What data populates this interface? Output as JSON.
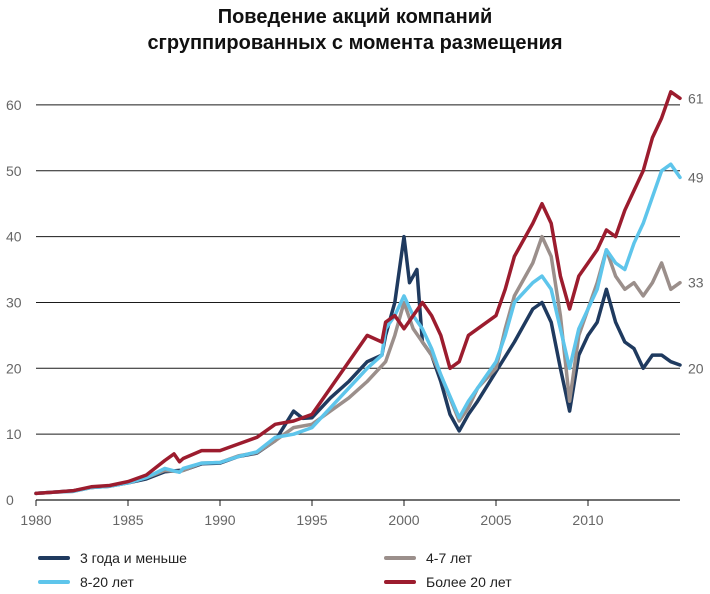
{
  "title_line1": "Поведение акций компаний",
  "title_line2": "сгруппированных с момента размещения",
  "chart_data": {
    "type": "line",
    "xlim": [
      1980,
      2015
    ],
    "ylim": [
      0,
      65
    ],
    "x_ticks": [
      "1980",
      "1985",
      "1990",
      "1995",
      "2000",
      "2005",
      "2010"
    ],
    "x_tick_values": [
      1980,
      1985,
      1990,
      1995,
      2000,
      2005,
      2010
    ],
    "y_ticks": [
      "0",
      "10",
      "20",
      "30",
      "40",
      "50",
      "60"
    ],
    "y_tick_values": [
      0,
      10,
      20,
      30,
      40,
      50,
      60
    ],
    "grid": "horizontal",
    "legend_position": "bottom",
    "series": [
      {
        "name": "3 года и меньше",
        "color": "#1f3a5f",
        "end_label": "20",
        "points": [
          [
            1980,
            1
          ],
          [
            1981,
            1.2
          ],
          [
            1982,
            1.4
          ],
          [
            1983,
            1.9
          ],
          [
            1984,
            2.1
          ],
          [
            1985,
            2.6
          ],
          [
            1986,
            3.2
          ],
          [
            1987,
            4.3
          ],
          [
            1987.8,
            4.5
          ],
          [
            1988,
            4.5
          ],
          [
            1989,
            5.5
          ],
          [
            1990,
            5.6
          ],
          [
            1991,
            6.6
          ],
          [
            1992,
            7.1
          ],
          [
            1993,
            9
          ],
          [
            1994,
            13.5
          ],
          [
            1994.5,
            12.4
          ],
          [
            1995,
            12.5
          ],
          [
            1996,
            15.5
          ],
          [
            1997,
            18
          ],
          [
            1998,
            21
          ],
          [
            1998.8,
            22
          ],
          [
            1999,
            25
          ],
          [
            1999.5,
            30
          ],
          [
            2000,
            40
          ],
          [
            2000.3,
            33
          ],
          [
            2000.7,
            35
          ],
          [
            2001,
            24
          ],
          [
            2001.5,
            22
          ],
          [
            2002,
            18
          ],
          [
            2002.5,
            13
          ],
          [
            2003,
            10.5
          ],
          [
            2003.5,
            13
          ],
          [
            2004,
            15
          ],
          [
            2005,
            19.5
          ],
          [
            2006,
            24
          ],
          [
            2007,
            29
          ],
          [
            2007.5,
            30
          ],
          [
            2008,
            27
          ],
          [
            2008.5,
            20
          ],
          [
            2009,
            13.5
          ],
          [
            2009.5,
            22
          ],
          [
            2010,
            25
          ],
          [
            2010.5,
            27
          ],
          [
            2011,
            32
          ],
          [
            2011.5,
            27
          ],
          [
            2012,
            24
          ],
          [
            2012.5,
            23
          ],
          [
            2013,
            20
          ],
          [
            2013.5,
            22
          ],
          [
            2014,
            22
          ],
          [
            2014.5,
            21
          ],
          [
            2015,
            20.5
          ]
        ]
      },
      {
        "name": "4-7 лет",
        "color": "#9b8f8b",
        "end_label": "33",
        "points": [
          [
            1980,
            1
          ],
          [
            1981,
            1.2
          ],
          [
            1982,
            1.3
          ],
          [
            1983,
            1.9
          ],
          [
            1984,
            2.1
          ],
          [
            1985,
            2.6
          ],
          [
            1986,
            3.4
          ],
          [
            1987,
            4.5
          ],
          [
            1987.8,
            4.3
          ],
          [
            1988,
            4.5
          ],
          [
            1989,
            5.6
          ],
          [
            1990,
            5.7
          ],
          [
            1991,
            6.7
          ],
          [
            1992,
            7.2
          ],
          [
            1993,
            9
          ],
          [
            1994,
            11
          ],
          [
            1995,
            11.5
          ],
          [
            1996,
            13.5
          ],
          [
            1997,
            15.5
          ],
          [
            1998,
            18
          ],
          [
            1999,
            21
          ],
          [
            1999.5,
            25
          ],
          [
            2000,
            30
          ],
          [
            2000.5,
            26
          ],
          [
            2001,
            24
          ],
          [
            2001.5,
            22
          ],
          [
            2002,
            19
          ],
          [
            2003,
            12
          ],
          [
            2003.5,
            14
          ],
          [
            2004,
            17
          ],
          [
            2005,
            20
          ],
          [
            2005.5,
            26
          ],
          [
            2006,
            31
          ],
          [
            2007,
            36
          ],
          [
            2007.5,
            40
          ],
          [
            2008,
            37
          ],
          [
            2008.5,
            28
          ],
          [
            2009,
            15
          ],
          [
            2009.5,
            25
          ],
          [
            2010,
            29
          ],
          [
            2010.5,
            33
          ],
          [
            2011,
            38
          ],
          [
            2011.5,
            34
          ],
          [
            2012,
            32
          ],
          [
            2012.5,
            33
          ],
          [
            2013,
            31
          ],
          [
            2013.5,
            33
          ],
          [
            2014,
            36
          ],
          [
            2014.5,
            32
          ],
          [
            2015,
            33
          ]
        ]
      },
      {
        "name": "8-20 лет",
        "color": "#5ec5eb",
        "end_label": "49",
        "points": [
          [
            1980,
            1
          ],
          [
            1981,
            1.2
          ],
          [
            1982,
            1.3
          ],
          [
            1983,
            1.9
          ],
          [
            1984,
            2.1
          ],
          [
            1985,
            2.6
          ],
          [
            1986,
            3.4
          ],
          [
            1987,
            4.8
          ],
          [
            1987.8,
            4.2
          ],
          [
            1988,
            4.8
          ],
          [
            1989,
            5.6
          ],
          [
            1990,
            5.7
          ],
          [
            1991,
            6.6
          ],
          [
            1992,
            7.3
          ],
          [
            1993,
            9.5
          ],
          [
            1994,
            10
          ],
          [
            1995,
            11
          ],
          [
            1996,
            14
          ],
          [
            1997,
            17
          ],
          [
            1998,
            20
          ],
          [
            1998.8,
            22
          ],
          [
            1999,
            26
          ],
          [
            1999.5,
            28
          ],
          [
            2000,
            31
          ],
          [
            2000.5,
            28
          ],
          [
            2001,
            26
          ],
          [
            2001.5,
            23
          ],
          [
            2002,
            19
          ],
          [
            2003,
            12.5
          ],
          [
            2003.5,
            15
          ],
          [
            2004,
            17
          ],
          [
            2005,
            21
          ],
          [
            2005.5,
            25
          ],
          [
            2006,
            30
          ],
          [
            2007,
            33
          ],
          [
            2007.5,
            34
          ],
          [
            2008,
            32
          ],
          [
            2008.5,
            26
          ],
          [
            2009,
            20
          ],
          [
            2009.5,
            26
          ],
          [
            2010,
            29
          ],
          [
            2010.5,
            32
          ],
          [
            2011,
            38
          ],
          [
            2011.5,
            36
          ],
          [
            2012,
            35
          ],
          [
            2012.5,
            39
          ],
          [
            2013,
            42
          ],
          [
            2013.5,
            46
          ],
          [
            2014,
            50
          ],
          [
            2014.5,
            51
          ],
          [
            2015,
            49
          ]
        ]
      },
      {
        "name": "Более 20 лет",
        "color": "#9c1c2e",
        "end_label": "61",
        "points": [
          [
            1980,
            1
          ],
          [
            1981,
            1.2
          ],
          [
            1982,
            1.4
          ],
          [
            1983,
            2
          ],
          [
            1984,
            2.2
          ],
          [
            1985,
            2.8
          ],
          [
            1986,
            3.8
          ],
          [
            1987,
            6
          ],
          [
            1987.5,
            7
          ],
          [
            1987.8,
            5.8
          ],
          [
            1988,
            6.3
          ],
          [
            1989,
            7.5
          ],
          [
            1990,
            7.5
          ],
          [
            1991,
            8.5
          ],
          [
            1992,
            9.5
          ],
          [
            1993,
            11.5
          ],
          [
            1994,
            12
          ],
          [
            1995,
            13
          ],
          [
            1996,
            17
          ],
          [
            1997,
            21
          ],
          [
            1998,
            25
          ],
          [
            1998.8,
            24
          ],
          [
            1999,
            27
          ],
          [
            1999.5,
            28
          ],
          [
            2000,
            26
          ],
          [
            2000.5,
            28
          ],
          [
            2001,
            30
          ],
          [
            2001.5,
            28
          ],
          [
            2002,
            25
          ],
          [
            2002.5,
            20
          ],
          [
            2003,
            21
          ],
          [
            2003.5,
            25
          ],
          [
            2004,
            26
          ],
          [
            2005,
            28
          ],
          [
            2005.5,
            32
          ],
          [
            2006,
            37
          ],
          [
            2007,
            42
          ],
          [
            2007.5,
            45
          ],
          [
            2008,
            42
          ],
          [
            2008.5,
            34
          ],
          [
            2009,
            29
          ],
          [
            2009.5,
            34
          ],
          [
            2010,
            36
          ],
          [
            2010.5,
            38
          ],
          [
            2011,
            41
          ],
          [
            2011.5,
            40
          ],
          [
            2012,
            44
          ],
          [
            2012.5,
            47
          ],
          [
            2013,
            50
          ],
          [
            2013.5,
            55
          ],
          [
            2014,
            58
          ],
          [
            2014.5,
            62
          ],
          [
            2015,
            61
          ]
        ]
      }
    ]
  }
}
